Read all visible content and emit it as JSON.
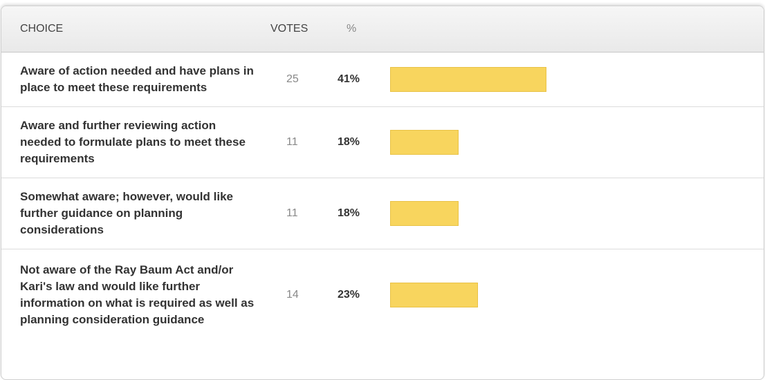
{
  "table": {
    "header": {
      "choice": "CHOICE",
      "votes": "VOTES",
      "percent": "%"
    },
    "rows": [
      {
        "choice": "Aware of action needed and have plans in place to meet these requirements",
        "votes": 25,
        "percent": 41,
        "percent_label": "41%"
      },
      {
        "choice": "Aware and further reviewing action needed to formulate plans to meet these requirements",
        "votes": 11,
        "percent": 18,
        "percent_label": "18%"
      },
      {
        "choice": "Somewhat aware; however, would like further guidance on planning considerations",
        "votes": 11,
        "percent": 18,
        "percent_label": "18%"
      },
      {
        "choice": "Not aware of the Ray Baum Act and/or Kari's law and would like further information on what is required as well as planning consideration guidance",
        "votes": 14,
        "percent": 23,
        "percent_label": "23%"
      }
    ]
  }
}
